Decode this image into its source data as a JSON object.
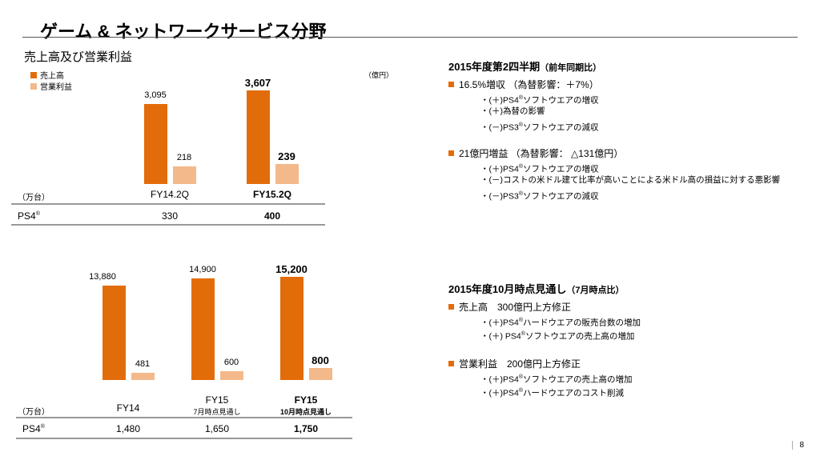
{
  "title": "ゲーム & ネットワークサービス分野",
  "subtitle": "売上高及び営業利益",
  "unit_oku": "（億円）",
  "unit_man": "（万台）",
  "legend": {
    "sales": "売上高",
    "oi": "営業利益"
  },
  "colors": {
    "sales": "#e36c0a",
    "oi": "#f4b98a",
    "accent": "#e36c0a"
  },
  "ps4_label": "PS4",
  "reg": "®",
  "chart_data": [
    {
      "type": "bar",
      "title": "売上高及び営業利益",
      "ylabel": "億円",
      "categories": [
        "FY14.2Q",
        "FY15.2Q"
      ],
      "series": [
        {
          "name": "売上高",
          "values": [
            3095,
            3607
          ],
          "labels": [
            "3,095",
            "3,607"
          ]
        },
        {
          "name": "営業利益",
          "values": [
            218,
            239
          ],
          "labels": [
            "218",
            "239"
          ]
        }
      ],
      "ps4_units": [
        "330",
        "400"
      ]
    },
    {
      "type": "bar",
      "ylabel": "億円",
      "categories": [
        "FY14",
        "FY15",
        "FY15"
      ],
      "category_sub": [
        "",
        "7月時点見通し",
        "10月時点見通し"
      ],
      "series": [
        {
          "name": "売上高",
          "values": [
            13880,
            14900,
            15200
          ],
          "labels": [
            "13,880",
            "14,900",
            "15,200"
          ]
        },
        {
          "name": "営業利益",
          "values": [
            481,
            600,
            800
          ],
          "labels": [
            "481",
            "600",
            "800"
          ]
        }
      ],
      "ps4_units": [
        "1,480",
        "1,650",
        "1,750"
      ]
    }
  ],
  "q2": {
    "heading": "2015年度第2四半期",
    "heading_note": "（前年同期比）",
    "bullets": [
      {
        "text": "16.5%増収 （為替影響：＋7%）",
        "items": [
          "・(＋)PS4®ソフトウエアの増収",
          "・(＋)為替の影響",
          "・(－)PS3®ソフトウエアの減収"
        ]
      },
      {
        "text": "21億円増益 （為替影響： △131億円）",
        "items": [
          "・(＋)PS4®ソフトウエアの増収",
          "・(－)コストの米ドル建て比率が高いことによる米ドル高の損益に対する悪影響",
          "・(－)PS3®ソフトウエアの減収"
        ]
      }
    ]
  },
  "outlook": {
    "heading": "2015年度10月時点見通し",
    "heading_note": "（7月時点比）",
    "bullets": [
      {
        "text": "売上高　300億円上方修正",
        "items": [
          "・(＋)PS4®ハードウエアの販売台数の増加",
          "・(＋) PS4®ソフトウエアの売上高の増加"
        ]
      },
      {
        "text": "営業利益　200億円上方修正",
        "items": [
          "・(＋)PS4®ソフトウエアの売上高の増加",
          "・(＋)PS4®ハードウエアのコスト削減"
        ]
      }
    ]
  },
  "page": "8"
}
